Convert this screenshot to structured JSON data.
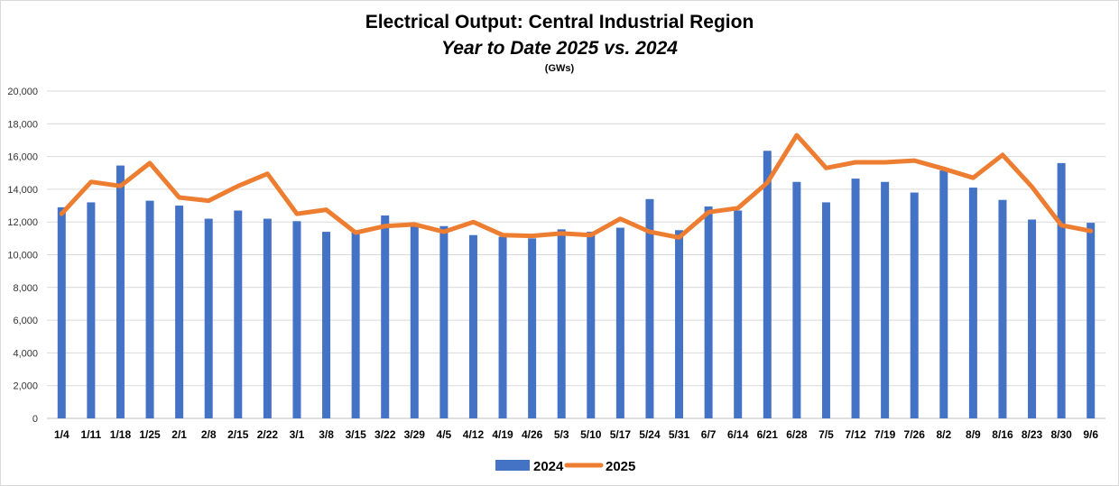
{
  "chart_data": {
    "type": "bar",
    "title": "Electrical Output:  Central Industrial Region",
    "subtitle": "Year to Date 2025 vs. 2024",
    "unit_label": "(GWs)",
    "categories": [
      "1/4",
      "1/11",
      "1/18",
      "1/25",
      "2/1",
      "2/8",
      "2/15",
      "2/22",
      "3/1",
      "3/8",
      "3/15",
      "3/22",
      "3/29",
      "4/5",
      "4/12",
      "4/19",
      "4/26",
      "5/3",
      "5/10",
      "5/17",
      "5/24",
      "5/31",
      "6/7",
      "6/14",
      "6/21",
      "6/28",
      "7/5",
      "7/12",
      "7/19",
      "7/26",
      "8/2",
      "8/9",
      "8/16",
      "8/23",
      "8/30",
      "9/6"
    ],
    "series": [
      {
        "name": "2024",
        "type": "bar",
        "color": "#4472C4",
        "values": [
          12900,
          13200,
          15450,
          13300,
          13000,
          12200,
          12700,
          12200,
          12050,
          11400,
          11400,
          12400,
          11800,
          11750,
          11200,
          11100,
          11000,
          11550,
          11400,
          11650,
          13400,
          11500,
          12950,
          12700,
          16350,
          14450,
          13200,
          14650,
          14450,
          13800,
          15150,
          14100,
          13350,
          12150,
          15600,
          11950
        ]
      },
      {
        "name": "2025",
        "type": "line",
        "color": "#ED7D31",
        "values": [
          12500,
          14450,
          14200,
          15600,
          13500,
          13300,
          14200,
          14950,
          12500,
          12750,
          11350,
          11750,
          11850,
          11400,
          12000,
          11200,
          11150,
          11300,
          11200,
          12200,
          11400,
          11050,
          12600,
          12850,
          14400,
          17300,
          15300,
          15650,
          15650,
          15750,
          15250,
          14700,
          16100,
          14150,
          11800,
          11450
        ]
      }
    ],
    "ylim": [
      0,
      20000
    ],
    "yticks": [
      "0",
      "2,000",
      "4,000",
      "6,000",
      "8,000",
      "10,000",
      "12,000",
      "14,000",
      "16,000",
      "18,000",
      "20,000"
    ],
    "grid": true,
    "legend": "bottom-center"
  }
}
